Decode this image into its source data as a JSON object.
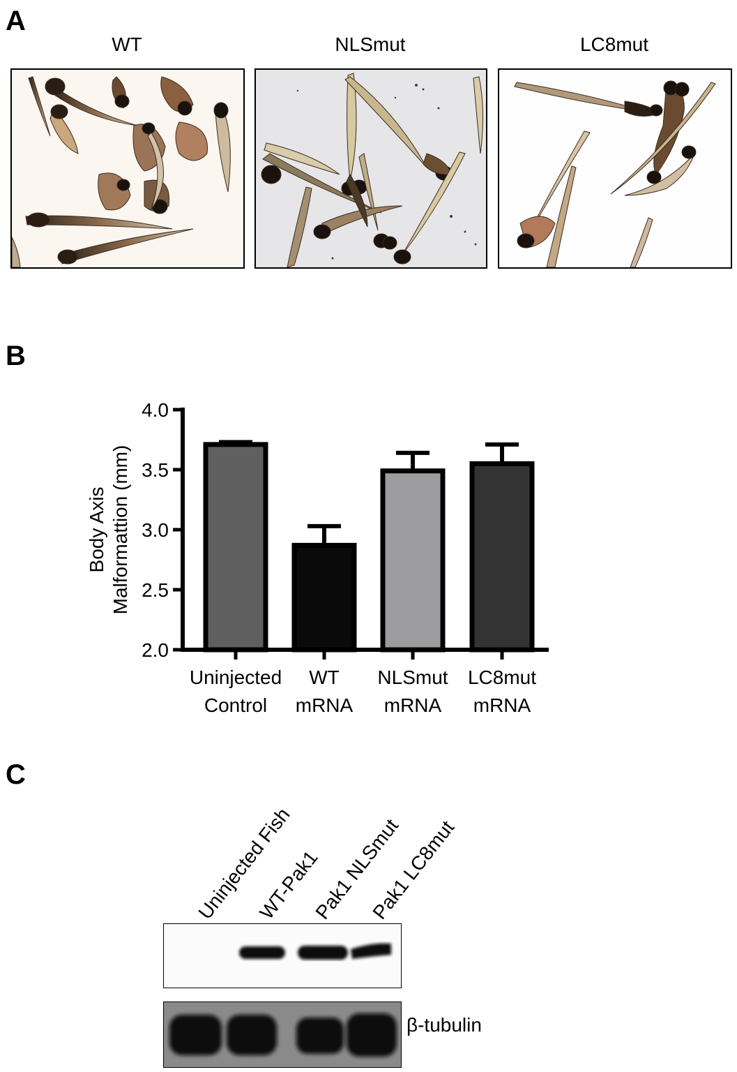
{
  "panels": {
    "a_letter": "A",
    "b_letter": "B",
    "c_letter": "C"
  },
  "panel_a": {
    "images": [
      {
        "label": "WT"
      },
      {
        "label": "NLSmut"
      },
      {
        "label": "LC8mut"
      }
    ]
  },
  "chart_data": {
    "type": "bar",
    "categories": [
      "Uninjected\nControl",
      "WT\nmRNA",
      "NLSmut\nmRNA",
      "LC8mut\nmRNA"
    ],
    "category_lines": [
      [
        "Uninjected",
        "Control"
      ],
      [
        "WT",
        "mRNA"
      ],
      [
        "NLSmut",
        "mRNA"
      ],
      [
        "LC8mut",
        "mRNA"
      ]
    ],
    "values": [
      3.71,
      2.87,
      3.49,
      3.55
    ],
    "errors": [
      0.02,
      0.16,
      0.15,
      0.16
    ],
    "bar_colors": [
      "#5f5f5f",
      "#0a0a0a",
      "#9c9c9e",
      "#333333"
    ],
    "ylabel_lines": [
      "Body Axis",
      "Malformattion (mm)"
    ],
    "ylim": [
      2.0,
      4.0
    ],
    "yticks": [
      "2.0",
      "2.5",
      "3.0",
      "3.5",
      "4.0"
    ],
    "ytick_values": [
      2.0,
      2.5,
      3.0,
      3.5,
      4.0
    ]
  },
  "panel_c": {
    "lanes": [
      "Uninjected Fish",
      "WT-Pak1",
      "Pak1 NLSmut",
      "Pak1 LC8mut"
    ],
    "loading_label": "β-tubulin"
  }
}
